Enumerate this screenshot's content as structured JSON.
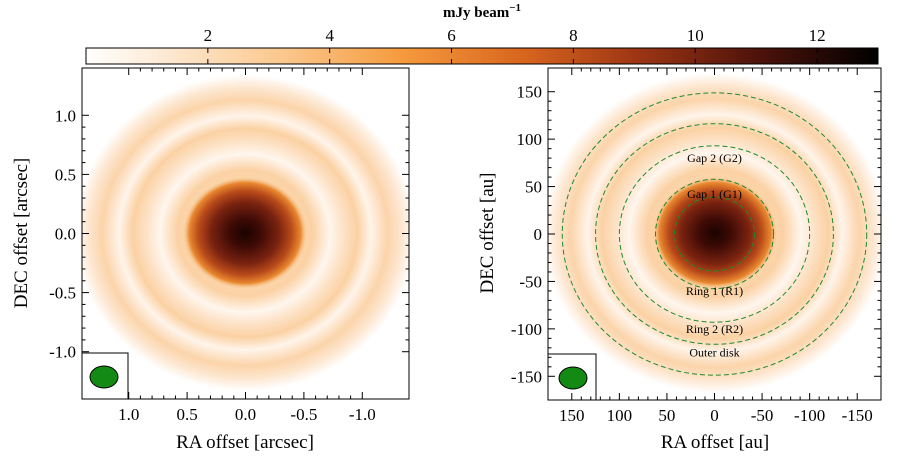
{
  "colorbar": {
    "label": "mJy beam",
    "label_exponent": "−1",
    "range": [
      0,
      13
    ],
    "ticks": [
      2,
      4,
      6,
      8,
      10,
      12
    ],
    "tick_labels": [
      "2",
      "4",
      "6",
      "8",
      "10",
      "12"
    ],
    "colormap": [
      "#ffffff",
      "#fde3c4",
      "#f9b773",
      "#f4882d",
      "#c0541a",
      "#6b1a10",
      "#000000"
    ]
  },
  "chart_data": [
    {
      "type": "heatmap",
      "panel": "left",
      "xlabel": "RA offset [arcsec]",
      "ylabel": "DEC offset [arcsec]",
      "xlim": [
        1.4,
        -1.4
      ],
      "ylim": [
        -1.4,
        1.4
      ],
      "xticks": [
        1.0,
        0.5,
        0.0,
        -0.5,
        -1.0
      ],
      "xtick_labels": [
        "1.0",
        "0.5",
        "0.0",
        "-0.5",
        "-1.0"
      ],
      "yticks": [
        -1.0,
        -0.5,
        0.0,
        0.5,
        1.0
      ],
      "ytick_labels": [
        "-1.0",
        "-0.5",
        "0.0",
        "0.5",
        "1.0"
      ],
      "grid": false,
      "beam_box": true
    },
    {
      "type": "heatmap",
      "panel": "right",
      "xlabel": "RA offset [au]",
      "ylabel": "DEC offset [au]",
      "xlim": [
        175,
        -175
      ],
      "ylim": [
        -175,
        175
      ],
      "xticks": [
        150,
        100,
        50,
        0,
        -50,
        -100,
        -150
      ],
      "xtick_labels": [
        "150",
        "100",
        "50",
        "0",
        "-50",
        "-100",
        "-150"
      ],
      "yticks": [
        -150,
        -100,
        -50,
        0,
        50,
        100,
        150
      ],
      "ytick_labels": [
        "-150",
        "-100",
        "-50",
        "0",
        "50",
        "100",
        "150"
      ],
      "grid": false,
      "beam_box": true,
      "ellipse_semi_major_au": [
        42,
        62,
        100,
        125,
        160
      ],
      "annotations": [
        {
          "text": "Gap 2 (G2)",
          "x": 0,
          "y": 80
        },
        {
          "text": "Gap 1 (G1)",
          "x": 0,
          "y": 42
        },
        {
          "text": "Ring 1 (R1)",
          "x": 0,
          "y": -60
        },
        {
          "text": "Ring 2 (R2)",
          "x": 0,
          "y": -100
        },
        {
          "text": "Outer disk",
          "x": 0,
          "y": -125
        }
      ]
    }
  ]
}
